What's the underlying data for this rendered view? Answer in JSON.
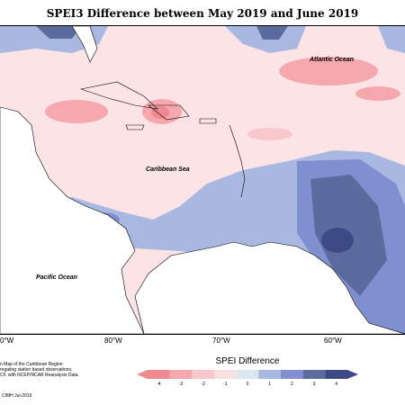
{
  "title": "SPEI3 Difference between May 2019 and June 2019",
  "map_labels": {
    "atlantic": "Atlantic Ocean",
    "caribbean": "Caribbean Sea",
    "pacific": "Pacific Ocean"
  },
  "longitudes": [
    "0°W",
    "80°W",
    "70°W",
    "60°W"
  ],
  "legend": {
    "title": "SPEI Difference",
    "ticks": [
      "-4",
      "-3",
      "-2",
      "-1",
      "0",
      "1",
      "2",
      "3",
      "4"
    ],
    "colors": [
      "#f08890",
      "#f5a8ae",
      "#f8c8cc",
      "#fbe0e2",
      "#d8e8ee",
      "#a9b8e0",
      "#7f8fcf",
      "#5b6b9d",
      "#3d4a86"
    ]
  },
  "credit_lines": [
    "n Map of the Caribbean Region",
    "regating station based observations,",
    "CF, with NCEP/NCAR Reanalysis Data."
  ],
  "credit_date": "CIMH Jul-2019"
}
